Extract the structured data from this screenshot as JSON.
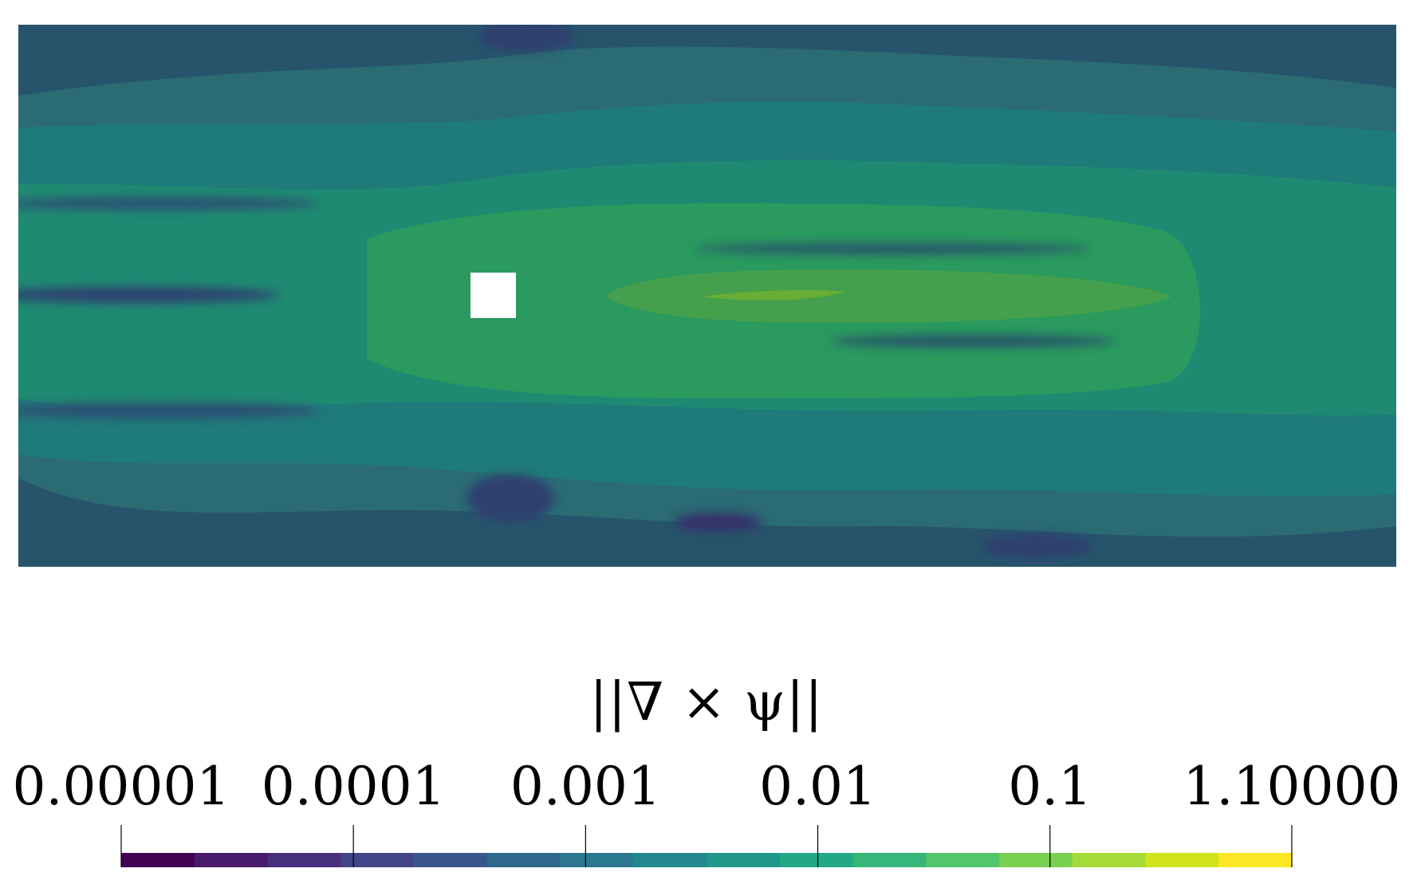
{
  "chart_data": {
    "type": "heatmap",
    "description_free": true,
    "colorbar": {
      "title": "||∇ × ψ||",
      "scale": "log",
      "range": [
        1e-05,
        1.1
      ],
      "tick_values": [
        1e-05,
        0.0001,
        0.001,
        0.01,
        0.1,
        1.1
      ],
      "tick_labels": [
        "0.00001",
        "0.0001",
        "0.001",
        "0.01",
        "0.1",
        "1.10000"
      ],
      "colormap": "viridis",
      "discrete_bands": 16,
      "band_colors": [
        "#440154",
        "#481a6c",
        "#472f7d",
        "#414487",
        "#39568c",
        "#31688e",
        "#2a788e",
        "#23888e",
        "#1f988b",
        "#22a884",
        "#35b779",
        "#54c568",
        "#7ad151",
        "#a5db36",
        "#d2e21b",
        "#fde725"
      ]
    },
    "field": {
      "background_color": "#27546b",
      "obstacle_color": "#ffffff"
    }
  }
}
